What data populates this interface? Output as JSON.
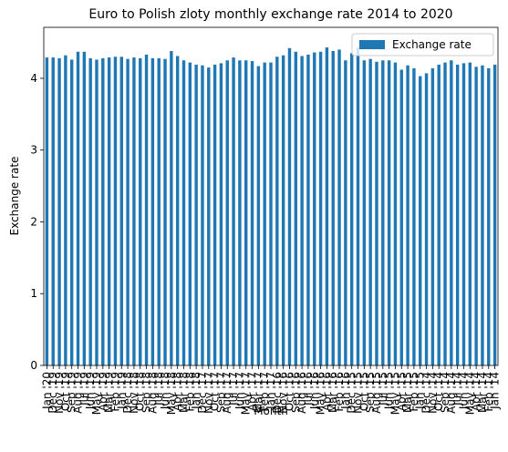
{
  "chart_data": {
    "type": "bar",
    "title": "Euro to Polish zloty monthly exchange rate 2014 to 2020",
    "x_label": "Month",
    "y_label": "Exchange rate",
    "categories": [
      "Jan '20",
      "Dec '19",
      "Nov '19",
      "Oct '19",
      "Sep '19",
      "Aug '19",
      "Jul '19",
      "Jun '19",
      "May '19",
      "Apr '19",
      "Mar '19",
      "Feb '19",
      "Jan '19",
      "Dec '18",
      "Nov '18",
      "Oct '18",
      "Sep '18",
      "Aug '18",
      "Jul '18",
      "Jun '18",
      "May '18",
      "Apr '18",
      "Mar '18",
      "Feb '18",
      "Jan '18",
      "Dec '17",
      "Nov '17",
      "Oct '17",
      "Sep '17",
      "Aug '17",
      "Jul '17",
      "Jun '17",
      "May '17",
      "Apr '17",
      "Mar '17",
      "Feb '17",
      "Jan '17",
      "Dec '16",
      "Nov '16",
      "Oct '16",
      "Sep '16",
      "Aug '16",
      "Jul '16",
      "Jun '16",
      "May '16",
      "Apr '16",
      "Mar '16",
      "Feb '16",
      "Jan '16",
      "Dec '15",
      "Nov '15",
      "Oct '15",
      "Sep '15",
      "Aug '15",
      "Jul '15",
      "Jun '15",
      "May '15",
      "Apr '15",
      "Mar '15",
      "Feb '15",
      "Jan '15",
      "Dec '14",
      "Nov '14",
      "Oct '14",
      "Sep '14",
      "Aug '14",
      "Jul '14",
      "Jun '14",
      "May '14",
      "Apr '14",
      "Mar '14",
      "Feb '14",
      "Jan '14"
    ],
    "series": [
      {
        "name": "Exchange rate",
        "color": "#1f77b4",
        "values": [
          4.29,
          4.29,
          4.28,
          4.32,
          4.26,
          4.37,
          4.37,
          4.28,
          4.26,
          4.28,
          4.29,
          4.3,
          4.3,
          4.27,
          4.29,
          4.28,
          4.33,
          4.28,
          4.28,
          4.27,
          4.38,
          4.31,
          4.25,
          4.22,
          4.19,
          4.18,
          4.15,
          4.19,
          4.21,
          4.25,
          4.29,
          4.25,
          4.25,
          4.24,
          4.17,
          4.22,
          4.22,
          4.3,
          4.32,
          4.42,
          4.37,
          4.31,
          4.33,
          4.36,
          4.37,
          4.43,
          4.38,
          4.4,
          4.25,
          4.35,
          4.43,
          4.25,
          4.27,
          4.23,
          4.25,
          4.25,
          4.22,
          4.12,
          4.18,
          4.14,
          4.03,
          4.07,
          4.14,
          4.19,
          4.22,
          4.25,
          4.19,
          4.21,
          4.22,
          4.16,
          4.18,
          4.14,
          4.19
        ]
      }
    ],
    "ylim": [
      0,
      4.71
    ],
    "yticks": [
      0,
      1,
      2,
      3,
      4
    ],
    "legend": "upper right"
  }
}
